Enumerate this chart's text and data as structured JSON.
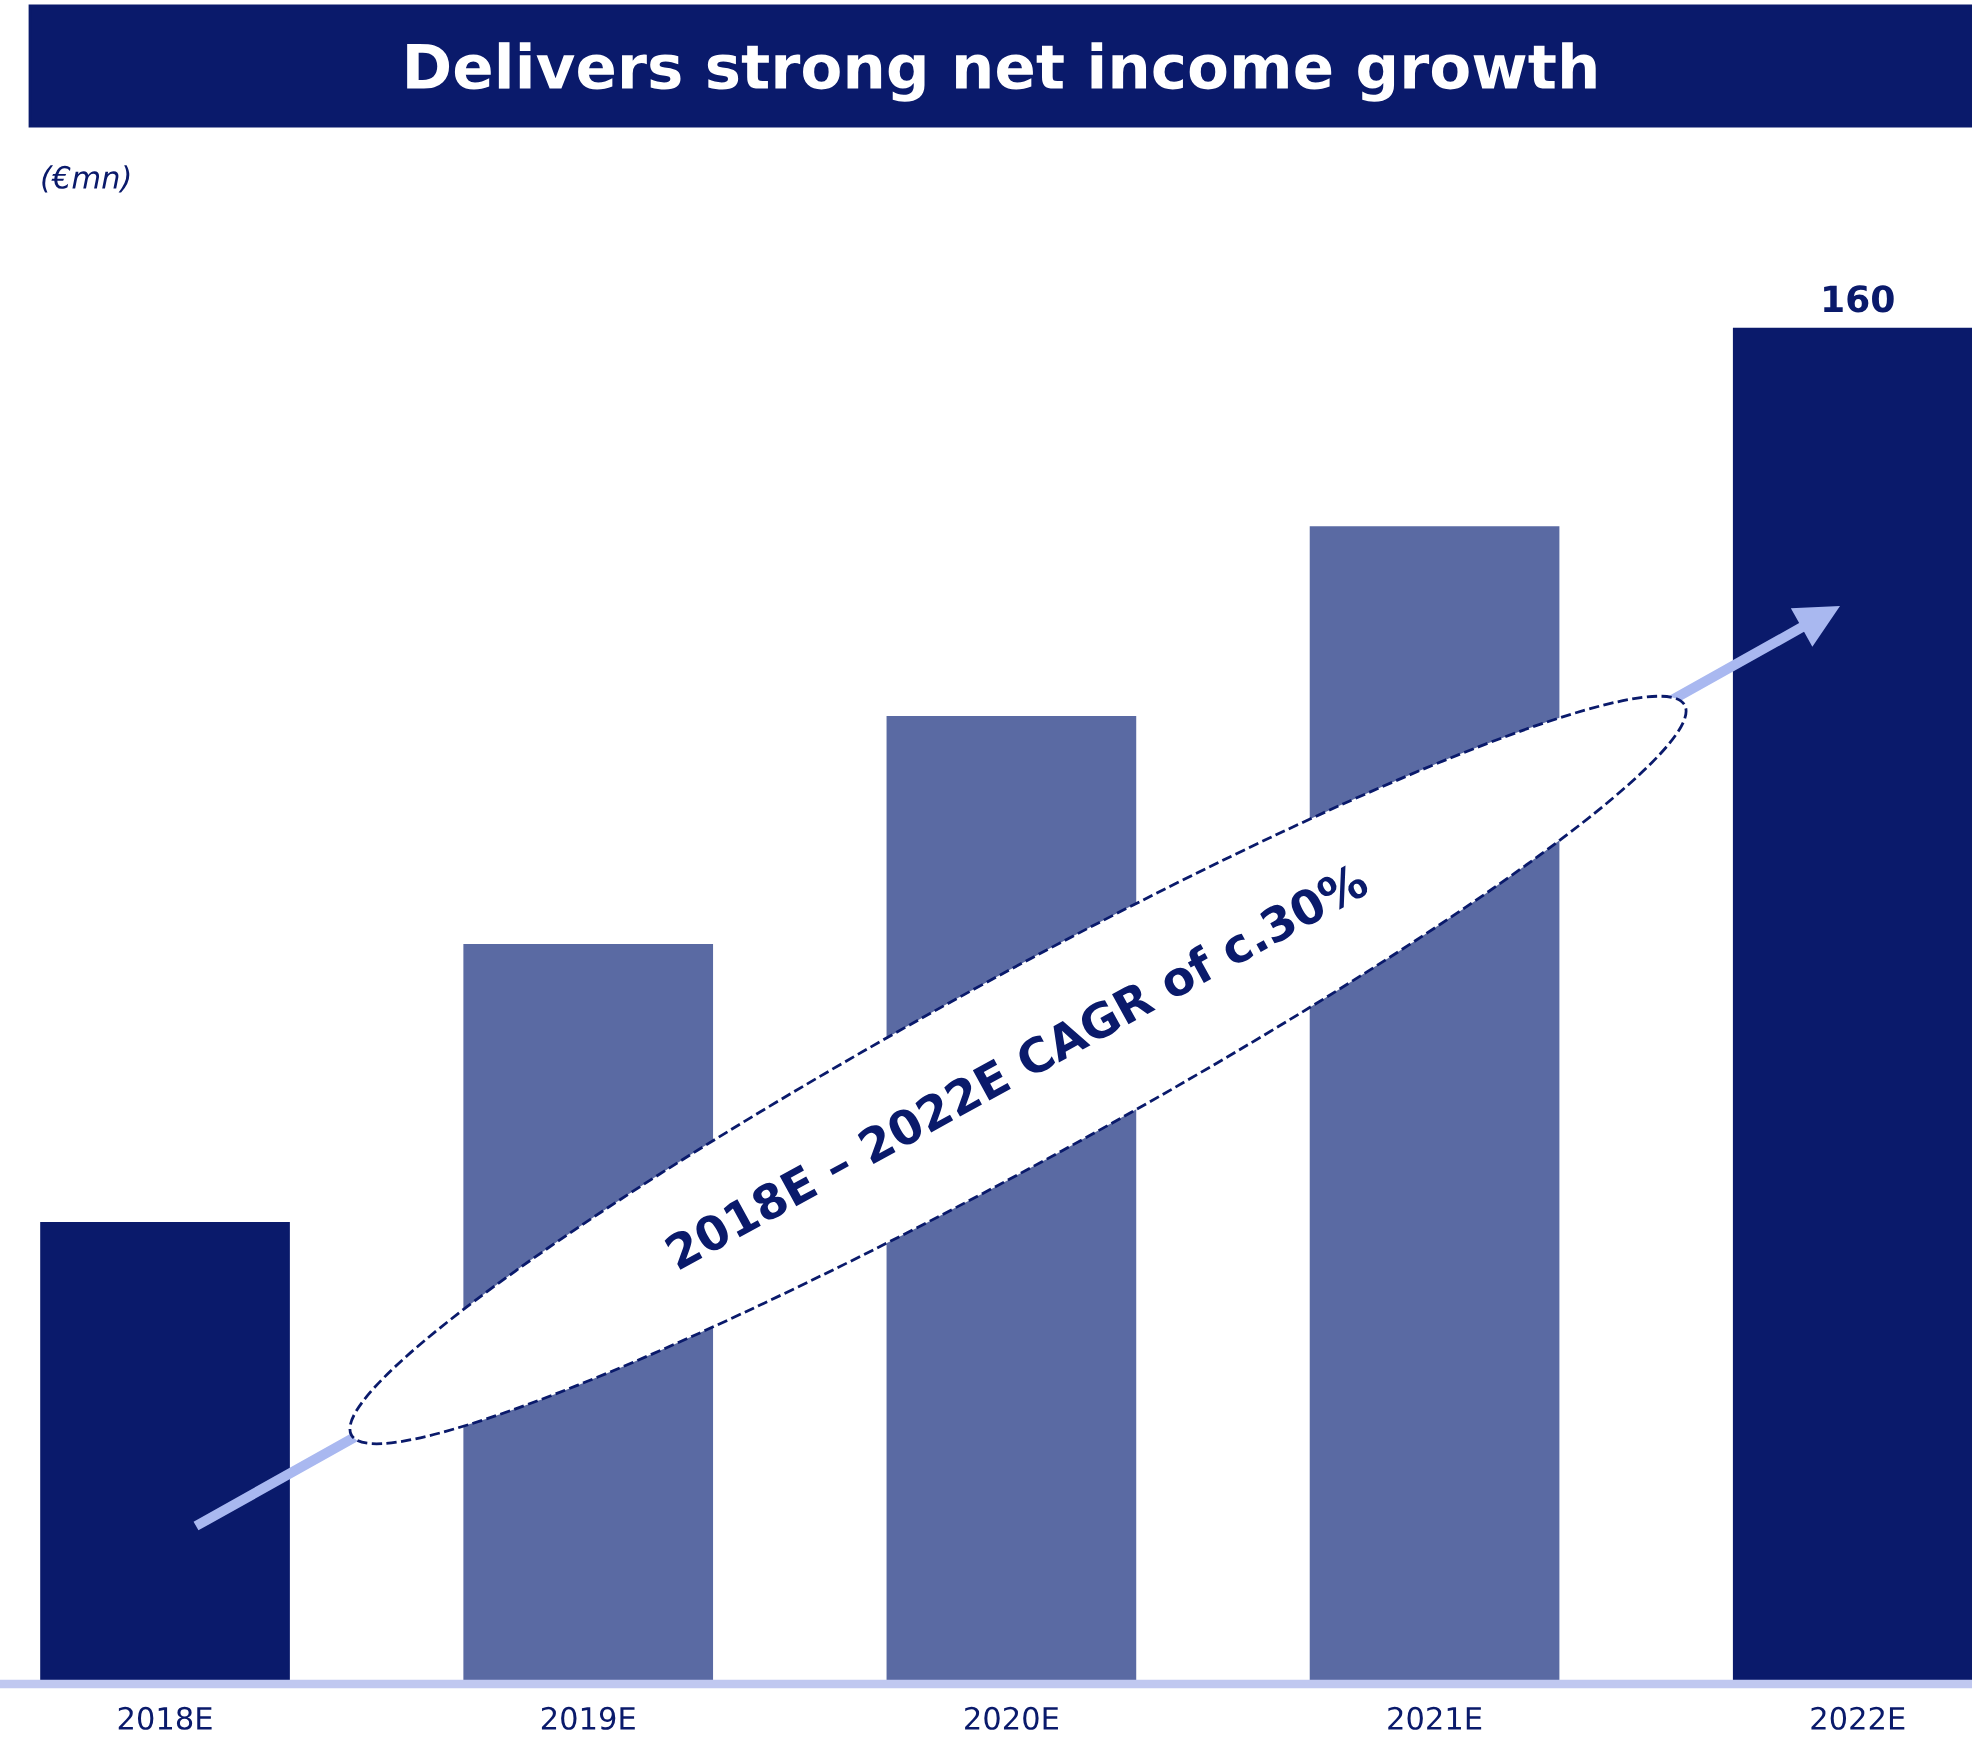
{
  "chart_data": {
    "type": "bar",
    "title": "Delivers strong net income growth",
    "subtitle": "(€mn)",
    "categories": [
      "2018E",
      "2019E",
      "2020E",
      "2021E",
      "2022E"
    ],
    "values": [
      54.5,
      87.3,
      114.2,
      136.6,
      160
    ],
    "colors": [
      "#0a1a6b",
      "#5a6aa3",
      "#5a6aa3",
      "#5a6aa3",
      "#0a1a6b"
    ],
    "value_labels": [
      null,
      null,
      null,
      null,
      "160"
    ],
    "annotations": [
      "2018E – 2022E CAGR of c.30%"
    ],
    "grid": false,
    "legend": false
  }
}
